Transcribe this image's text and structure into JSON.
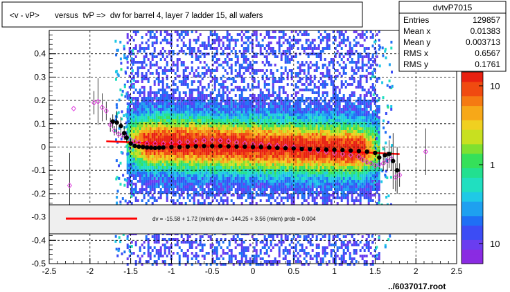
{
  "title": "<v - vP>       versus  tvP =>  dw for barrel 4, layer 7 ladder 15, all wafers",
  "stats": {
    "name": "dvtvP7015",
    "rows": [
      {
        "label": "Entries",
        "value": "129857"
      },
      {
        "label": "Mean x",
        "value": "0.01383"
      },
      {
        "label": "Mean y",
        "value": "0.003713"
      },
      {
        "label": "RMS x",
        "value": "0.6567"
      },
      {
        "label": "RMS y",
        "value": "0.1761"
      }
    ]
  },
  "fit_legend": "dv =  -15.58 +   1.72 (mkm) dw = -144.25 +   3.56 (mkm) prob = 0.004",
  "footer": "../6037017.root",
  "colors": {
    "fit_line": "#ff0000",
    "profile_black": "#000000",
    "profile_open": "#e040e0",
    "legend_box": "#efefef"
  },
  "chart_data": {
    "type": "heatmap",
    "title": "<v - vP>       versus  tvP =>  dw for barrel 4, layer 7 ladder 15, all wafers",
    "xlim": [
      -2.5,
      2.5
    ],
    "ylim": [
      -0.5,
      0.5
    ],
    "x_ticks": [
      "-2.5",
      "-2",
      "-1.5",
      "-1",
      "-0.5",
      "0",
      "0.5",
      "1",
      "1.5",
      "2",
      "2.5"
    ],
    "x_tick_values": [
      -2.5,
      -2,
      -1.5,
      -1,
      -0.5,
      0,
      0.5,
      1,
      1.5,
      2,
      2.5
    ],
    "y_ticks": [
      "-0.5",
      "-0.4",
      "-0.3",
      "-0.2",
      "-0.1",
      "0",
      "0.1",
      "0.2",
      "0.3",
      "0.4"
    ],
    "y_tick_values": [
      -0.5,
      -0.4,
      -0.3,
      -0.2,
      -0.1,
      0,
      0.1,
      0.2,
      0.3,
      0.4
    ],
    "grid": true,
    "z_scale": "log",
    "z_ticks": [
      "10",
      "1",
      "10"
    ],
    "z_tick_values": [
      10,
      1,
      0.1
    ],
    "density_x_range": [
      -1.55,
      1.55
    ],
    "fit": {
      "x": [
        -1.8,
        1.8
      ],
      "y": [
        0.025,
        -0.03
      ]
    },
    "profile_black": {
      "x": [
        -1.72,
        -1.67,
        -1.62,
        -1.58,
        -1.55,
        -1.5,
        -1.45,
        -1.4,
        -1.35,
        -1.3,
        -1.25,
        -1.2,
        -1.15,
        -1.1,
        -1.0,
        -0.9,
        -0.8,
        -0.7,
        -0.6,
        -0.5,
        -0.4,
        -0.3,
        -0.2,
        -0.1,
        0.0,
        0.1,
        0.2,
        0.3,
        0.4,
        0.5,
        0.6,
        0.7,
        0.8,
        0.9,
        1.0,
        1.1,
        1.2,
        1.3,
        1.4,
        1.5,
        1.55,
        1.62,
        1.67,
        1.72,
        1.77
      ],
      "y": [
        0.11,
        0.105,
        0.09,
        0.06,
        0.04,
        0.015,
        0.005,
        0.002,
        0.0,
        -0.002,
        -0.003,
        -0.004,
        -0.003,
        -0.002,
        0.0,
        0.0,
        0.002,
        0.003,
        0.004,
        0.004,
        0.004,
        0.003,
        0.002,
        0.002,
        0.0,
        0.0,
        -0.002,
        -0.004,
        -0.005,
        -0.006,
        -0.008,
        -0.009,
        -0.01,
        -0.011,
        -0.012,
        -0.013,
        -0.015,
        -0.017,
        -0.02,
        -0.025,
        -0.045,
        -0.035,
        -0.03,
        -0.06,
        -0.1
      ],
      "err": [
        0.03,
        0.05,
        0.04,
        0.03,
        0.02,
        0.01,
        0.006,
        0.005,
        0.004,
        0.004,
        0.003,
        0.003,
        0.003,
        0.003,
        0.003,
        0.003,
        0.003,
        0.003,
        0.003,
        0.003,
        0.003,
        0.003,
        0.003,
        0.003,
        0.003,
        0.003,
        0.003,
        0.003,
        0.003,
        0.003,
        0.003,
        0.003,
        0.003,
        0.003,
        0.004,
        0.004,
        0.005,
        0.006,
        0.008,
        0.01,
        0.03,
        0.04,
        0.06,
        0.12,
        0.1
      ]
    },
    "profile_open": {
      "x": [
        -2.25,
        -2.2,
        -1.95,
        -1.9,
        -1.85,
        -1.8,
        -1.75,
        -1.7,
        -1.65,
        -1.6,
        -1.55,
        -1.5,
        -1.45,
        -1.4,
        -1.3,
        -1.2,
        -1.1,
        -1.0,
        -0.9,
        -0.8,
        -0.7,
        -0.6,
        -0.5,
        -0.4,
        -0.3,
        -0.2,
        -0.1,
        0.0,
        0.1,
        0.2,
        0.3,
        0.4,
        0.5,
        0.6,
        0.7,
        0.8,
        0.9,
        1.0,
        1.1,
        1.2,
        1.3,
        1.35,
        1.4,
        1.45,
        1.5,
        1.55,
        1.6,
        1.65,
        1.7,
        1.75,
        1.8,
        2.12
      ],
      "y": [
        -0.165,
        0.165,
        0.19,
        0.195,
        0.17,
        0.155,
        0.095,
        0.07,
        0.055,
        0.05,
        0.045,
        0.03,
        0.025,
        0.02,
        0.015,
        0.015,
        0.015,
        0.018,
        0.02,
        0.022,
        0.025,
        0.028,
        0.03,
        0.028,
        0.025,
        0.02,
        0.016,
        0.012,
        0.01,
        0.008,
        0.005,
        0.002,
        -0.002,
        -0.008,
        -0.012,
        -0.015,
        -0.02,
        -0.025,
        -0.03,
        -0.035,
        -0.042,
        -0.055,
        -0.065,
        -0.07,
        -0.08,
        -0.075,
        -0.07,
        -0.06,
        -0.05,
        -0.13,
        -0.12,
        -0.02
      ],
      "err": [
        0.14,
        0.0,
        0.05,
        0.1,
        0.06,
        0.04,
        0.03,
        0.02,
        0.015,
        0.01,
        0.008,
        0.006,
        0.005,
        0.004,
        0.004,
        0.003,
        0.003,
        0.003,
        0.003,
        0.003,
        0.003,
        0.003,
        0.003,
        0.003,
        0.003,
        0.003,
        0.003,
        0.003,
        0.003,
        0.003,
        0.003,
        0.003,
        0.003,
        0.003,
        0.003,
        0.003,
        0.003,
        0.004,
        0.004,
        0.005,
        0.006,
        0.008,
        0.01,
        0.012,
        0.015,
        0.02,
        0.03,
        0.04,
        0.05,
        0.06,
        0.05,
        0.1
      ]
    }
  }
}
